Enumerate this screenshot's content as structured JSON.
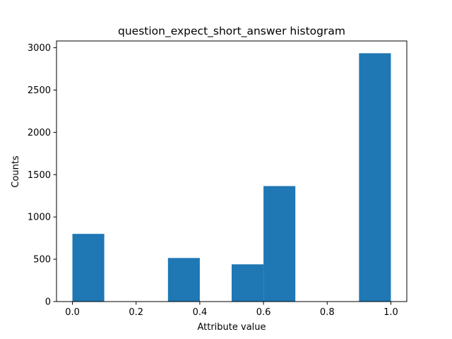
{
  "chart_data": {
    "type": "bar",
    "title": "question_expect_short_answer histogram",
    "xlabel": "Attribute value",
    "ylabel": "Counts",
    "xlim": [
      -0.05,
      1.05
    ],
    "ylim": [
      0,
      3080
    ],
    "grid": false,
    "bar_color": "#1f77b4",
    "x_ticks": [
      0.0,
      0.2,
      0.4,
      0.6,
      0.8,
      1.0
    ],
    "x_tick_labels": [
      "0.0",
      "0.2",
      "0.4",
      "0.6",
      "0.8",
      "1.0"
    ],
    "y_ticks": [
      0,
      500,
      1000,
      1500,
      2000,
      2500,
      3000
    ],
    "y_tick_labels": [
      "0",
      "500",
      "1000",
      "1500",
      "2000",
      "2500",
      "3000"
    ],
    "bins": [
      {
        "x0": 0.0,
        "x1": 0.1,
        "count": 800
      },
      {
        "x0": 0.1,
        "x1": 0.2,
        "count": 0
      },
      {
        "x0": 0.2,
        "x1": 0.3,
        "count": 0
      },
      {
        "x0": 0.3,
        "x1": 0.4,
        "count": 515
      },
      {
        "x0": 0.4,
        "x1": 0.5,
        "count": 0
      },
      {
        "x0": 0.5,
        "x1": 0.6,
        "count": 440
      },
      {
        "x0": 0.6,
        "x1": 0.7,
        "count": 1365
      },
      {
        "x0": 0.7,
        "x1": 0.8,
        "count": 0
      },
      {
        "x0": 0.8,
        "x1": 0.9,
        "count": 0
      },
      {
        "x0": 0.9,
        "x1": 1.0,
        "count": 2935
      }
    ]
  }
}
